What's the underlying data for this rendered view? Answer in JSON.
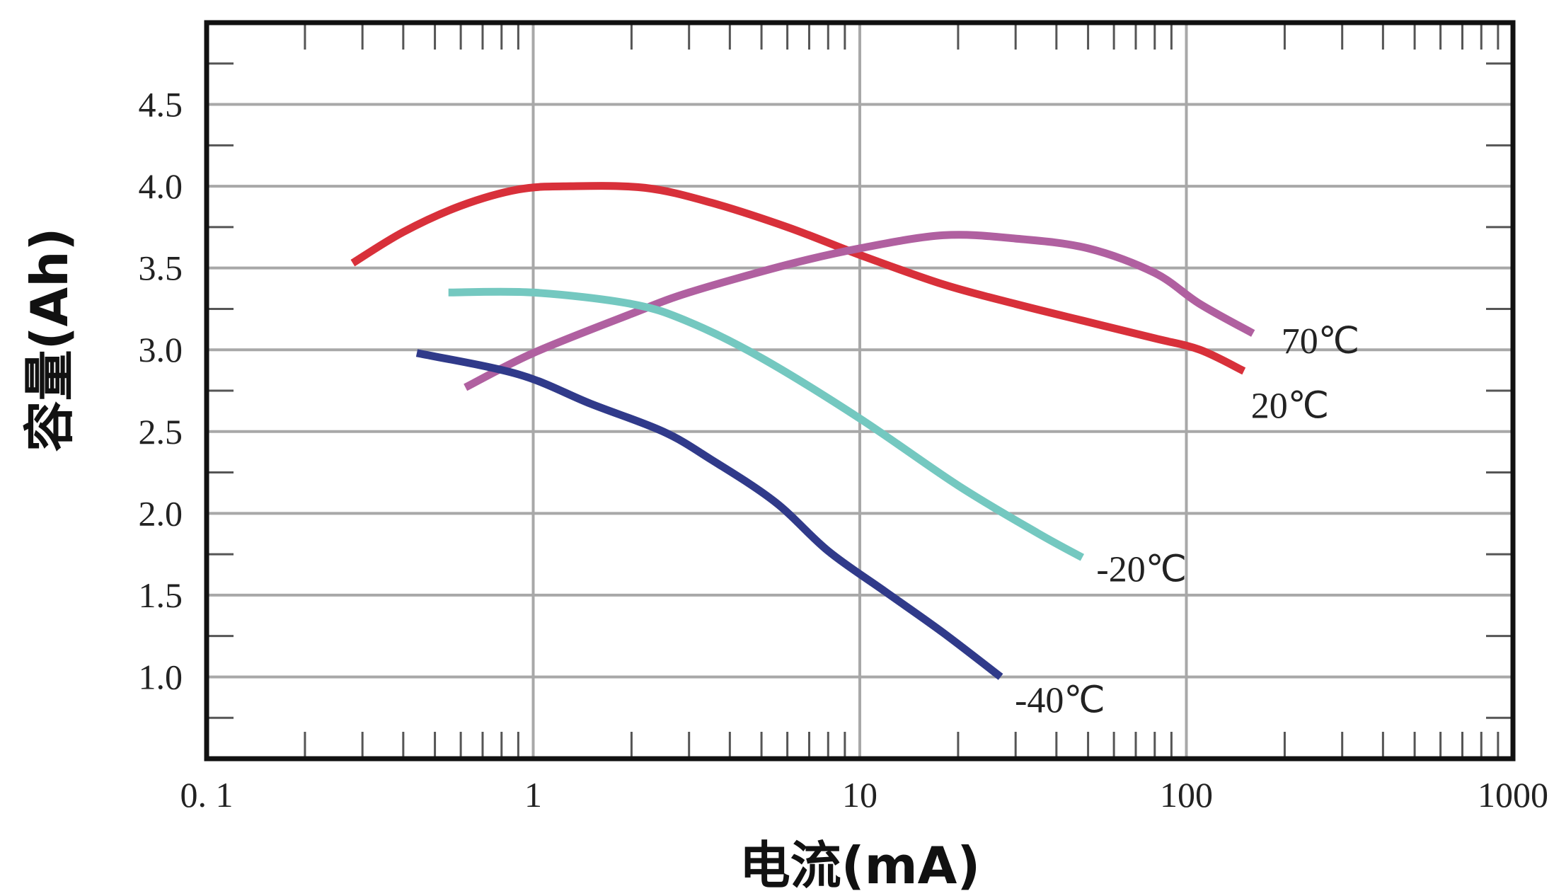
{
  "chart_data": {
    "type": "line",
    "title": "",
    "xlabel": "电流(mA)",
    "ylabel": "容量(Ah)",
    "x_scale": "log",
    "xlim": [
      0.1,
      1000
    ],
    "ylim": [
      0.5,
      5.0
    ],
    "x_ticks": [
      0.1,
      1,
      10,
      100,
      1000
    ],
    "x_tick_labels": [
      "0. 1",
      "1",
      "10",
      "100",
      "1000"
    ],
    "y_ticks": [
      1.0,
      1.5,
      2.0,
      2.5,
      3.0,
      3.5,
      4.0,
      4.5
    ],
    "y_tick_labels": [
      "1.0",
      "1.5",
      "2.0",
      "2.5",
      "3.0",
      "3.5",
      "4.0",
      "4.5"
    ],
    "grid": true,
    "legend": "none",
    "series": [
      {
        "name": "20℃",
        "color": "#d8303a",
        "x": [
          0.28,
          0.4,
          0.6,
          0.9,
          1.3,
          2.2,
          3.5,
          6,
          10,
          18,
          30,
          50,
          80,
          110,
          150
        ],
        "y": [
          3.53,
          3.72,
          3.88,
          3.98,
          4.0,
          3.99,
          3.9,
          3.75,
          3.58,
          3.4,
          3.28,
          3.17,
          3.07,
          3.0,
          2.87
        ]
      },
      {
        "name": "70℃",
        "color": "#b060a0",
        "x": [
          0.62,
          1,
          2,
          3,
          6,
          10,
          18,
          30,
          50,
          80,
          110,
          160
        ],
        "y": [
          2.77,
          2.98,
          3.22,
          3.35,
          3.52,
          3.62,
          3.7,
          3.68,
          3.62,
          3.47,
          3.28,
          3.1
        ]
      },
      {
        "name": "-20℃",
        "color": "#74c8c0",
        "x": [
          0.55,
          1,
          2,
          3,
          5,
          10,
          20,
          35,
          48
        ],
        "y": [
          3.35,
          3.35,
          3.28,
          3.17,
          2.95,
          2.58,
          2.17,
          1.88,
          1.73
        ]
      },
      {
        "name": "-40℃",
        "color": "#303a8a",
        "x": [
          0.44,
          0.9,
          1.5,
          2.5,
          3.5,
          5.5,
          8,
          12,
          18,
          27
        ],
        "y": [
          2.98,
          2.85,
          2.67,
          2.5,
          2.33,
          2.07,
          1.77,
          1.52,
          1.27,
          1.0
        ]
      }
    ]
  }
}
